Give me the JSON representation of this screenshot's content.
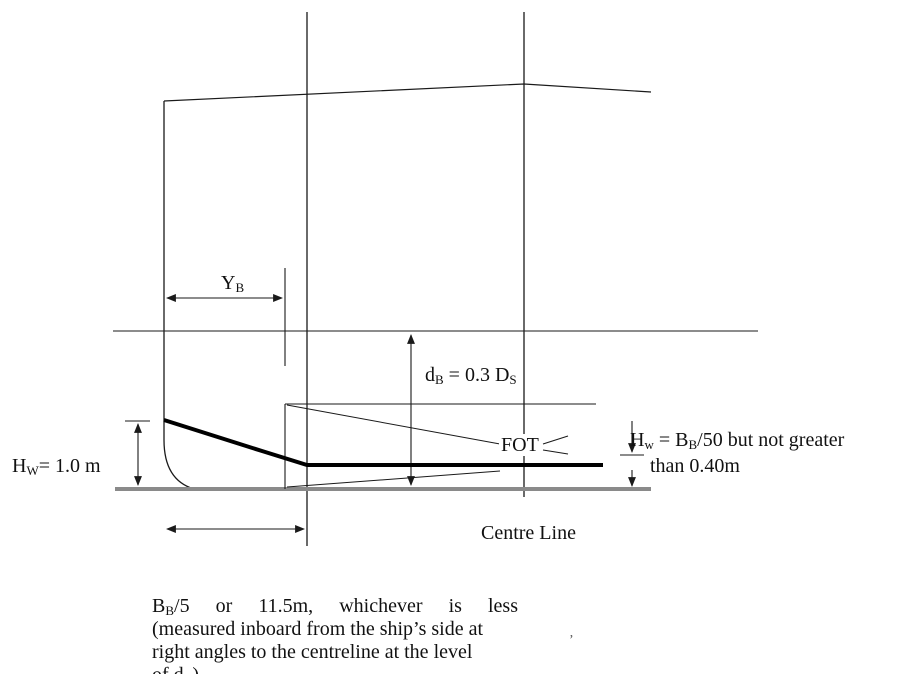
{
  "labels": {
    "yb_main": "Y",
    "yb_sub": "B",
    "db_main": "d",
    "db_sub": "B",
    "db_rest_a": " = 0.3 D",
    "db_rest_sub": "S",
    "hw_main": "H",
    "hw_sub": "W",
    "hw_rest": "= 1.0 m",
    "hw_rule_main": "H",
    "hw_rule_sub": "w",
    "hw_rule_eq": " = B",
    "hw_rule_eq_sub": "B",
    "hw_rule_rest": "/50 but not greater",
    "hw_rule_line2": "than 0.40m",
    "fot": "FOT",
    "centre_line": "Centre Line",
    "note_line1_main": "B",
    "note_line1_sub": "B",
    "note_line1_rest": "/5   or   11.5m,   whichever   is   less",
    "note_line2": "(measured inboard from the ship’s side at",
    "note_line3": "right angles to the centreline at the level",
    "note_line4_main": "of d",
    "note_line4_sub": "B",
    "note_line4_rest": ")",
    "stray_mark": "’"
  },
  "colors": {
    "line": "#1a1a1a",
    "baseline": "#8a8a8a",
    "thick": "#000000"
  }
}
